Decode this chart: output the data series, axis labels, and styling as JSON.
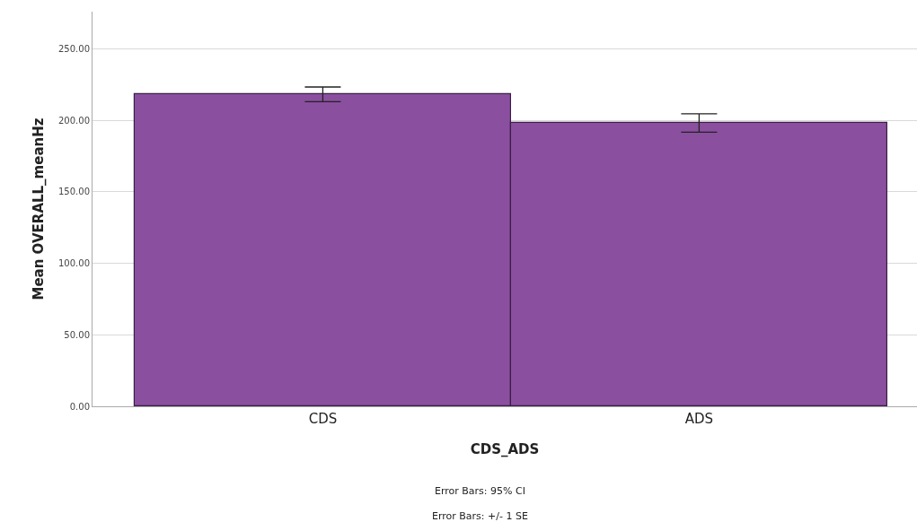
{
  "chart_data": {
    "type": "bar",
    "xlabel": "CDS_ADS",
    "ylabel": "Mean OVERALL_meanHz",
    "categories": [
      "CDS",
      "ADS"
    ],
    "values": [
      218.3,
      198.3
    ],
    "errors": [
      [
        213.0,
        223.3
      ],
      [
        191.7,
        204.6
      ]
    ],
    "color": "#8b4f9f",
    "ylim": [
      0,
      276
    ],
    "yticks": [
      {
        "value": 0,
        "label": "0.00"
      },
      {
        "value": 50,
        "label": "50.00"
      },
      {
        "value": 100,
        "label": "100.00"
      },
      {
        "value": 150,
        "label": "150.00"
      },
      {
        "value": 200,
        "label": "200.00"
      },
      {
        "value": 250,
        "label": "250.00"
      }
    ],
    "grid": "y",
    "annotations": [
      "Error Bars: 95% CI",
      "Error Bars: +/- 1 SE"
    ]
  }
}
